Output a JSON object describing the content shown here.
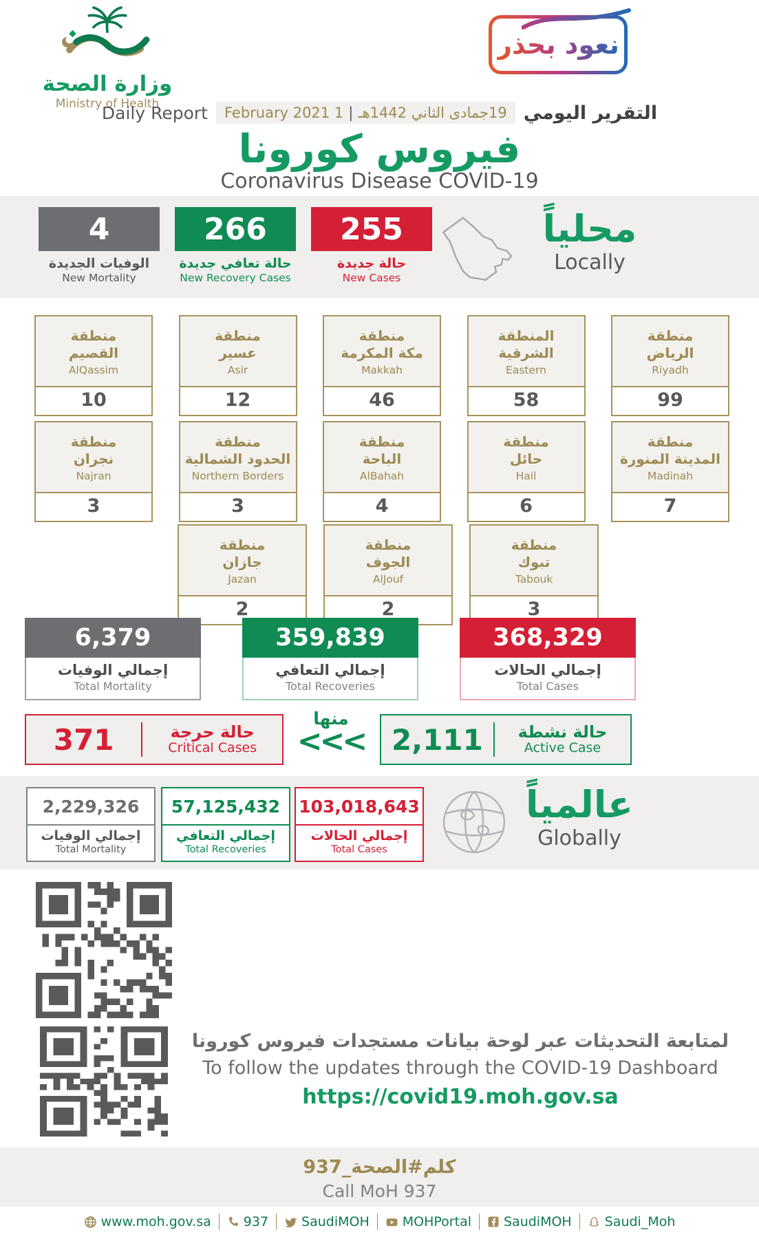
{
  "colors": {
    "green": "#0F8B53",
    "brand_green": "#169A63",
    "red": "#D51F35",
    "gray": "#6D6E71",
    "gold": "#A28D5A",
    "band": "#F0EFED"
  },
  "header": {
    "ministry_ar": "وزارة الصحة",
    "ministry_en": "Ministry of Health",
    "badge": "نعود بحذر",
    "daily_report_en": "Daily Report",
    "date_greg": "1 February 2021",
    "date_sep": "|",
    "date_hijri": "19جمادى الثاني 1442هـ",
    "daily_report_ar": "التقرير اليومي",
    "title_ar": "فيروس كورونا",
    "title_en": "Coronavirus Disease COVID-19"
  },
  "locally": {
    "heading_ar": "محلياً",
    "heading_en": "Locally",
    "new_mortality": {
      "value": "4",
      "label_ar": "الوفيات الجديدة",
      "label_en": "New Mortality"
    },
    "new_recoveries": {
      "value": "266",
      "label_ar": "حالة تعافي جديدة",
      "label_en": "New Recovery Cases"
    },
    "new_cases": {
      "value": "255",
      "label_ar": "حالة جديدة",
      "label_en": "New Cases"
    }
  },
  "regions": {
    "row1": [
      {
        "name_ar": "منطقة\nالقصيم",
        "name_en": "AlQassim",
        "value": "10"
      },
      {
        "name_ar": "منطقة\nعسير",
        "name_en": "Asir",
        "value": "12"
      },
      {
        "name_ar": "منطقة\nمكة المكرمة",
        "name_en": "Makkah",
        "value": "46"
      },
      {
        "name_ar": "المنطقة\nالشرقية",
        "name_en": "Eastern",
        "value": "58"
      },
      {
        "name_ar": "منطقة\nالرياض",
        "name_en": "Riyadh",
        "value": "99"
      }
    ],
    "row2": [
      {
        "name_ar": "منطقة\nنجران",
        "name_en": "Najran",
        "value": "3"
      },
      {
        "name_ar": "منطقة\nالحدود الشمالية",
        "name_en": "Northern Borders",
        "value": "3"
      },
      {
        "name_ar": "منطقة\nالباحة",
        "name_en": "AlBahah",
        "value": "4"
      },
      {
        "name_ar": "منطقة\nحائل",
        "name_en": "Hail",
        "value": "6"
      },
      {
        "name_ar": "منطقة\nالمدينة المنورة",
        "name_en": "Madinah",
        "value": "7"
      }
    ],
    "row3": [
      {
        "name_ar": "منطقة\nجازان",
        "name_en": "Jazan",
        "value": "2"
      },
      {
        "name_ar": "منطقة\nالجوف",
        "name_en": "AlJouf",
        "value": "2"
      },
      {
        "name_ar": "منطقة\nتبوك",
        "name_en": "Tabouk",
        "value": "3"
      }
    ]
  },
  "totals": {
    "mortality": {
      "value": "6,379",
      "label_ar": "إجمالي الوفيات",
      "label_en": "Total Mortality"
    },
    "recoveries": {
      "value": "359,839",
      "label_ar": "إجمالي التعافي",
      "label_en": "Total Recoveries"
    },
    "cases": {
      "value": "368,329",
      "label_ar": "إجمالي الحالات",
      "label_en": "Total Cases"
    }
  },
  "breakdown": {
    "critical": {
      "value": "371",
      "label_ar": "حالة حرجة",
      "label_en": "Critical Cases"
    },
    "of_which_ar": "منها",
    "arrows": "<<<",
    "active": {
      "value": "2,111",
      "label_ar": "حالة نشطة",
      "label_en": "Active Case"
    }
  },
  "globally": {
    "heading_ar": "عالمياً",
    "heading_en": "Globally",
    "mortality": {
      "value": "2,229,326",
      "label_ar": "إجمالي الوفيات",
      "label_en": "Total Mortality"
    },
    "recoveries": {
      "value": "57,125,432",
      "label_ar": "إجمالي التعافي",
      "label_en": "Total Recoveries"
    },
    "cases": {
      "value": "103,018,643",
      "label_ar": "إجمالي الحالات",
      "label_en": "Total Cases"
    }
  },
  "dashboard": {
    "line_ar": "لمتابعة التحديثات عبر لوحة بيانات مستجدات فيروس كورونا",
    "line_en": "To follow the updates through the COVID-19 Dashboard",
    "url": "https://covid19.moh.gov.sa"
  },
  "call": {
    "ar": "كلم#الصحة_937",
    "en": "Call MoH 937"
  },
  "footer": {
    "items": [
      {
        "icon": "globe-icon",
        "label": "www.moh.gov.sa"
      },
      {
        "icon": "phone-icon",
        "label": "937"
      },
      {
        "icon": "twitter-icon",
        "label": "SaudiMOH"
      },
      {
        "icon": "youtube-icon",
        "label": "MOHPortal"
      },
      {
        "icon": "facebook-icon",
        "label": "SaudiMOH"
      },
      {
        "icon": "snapchat-icon",
        "label": "Saudi_Moh"
      }
    ]
  }
}
